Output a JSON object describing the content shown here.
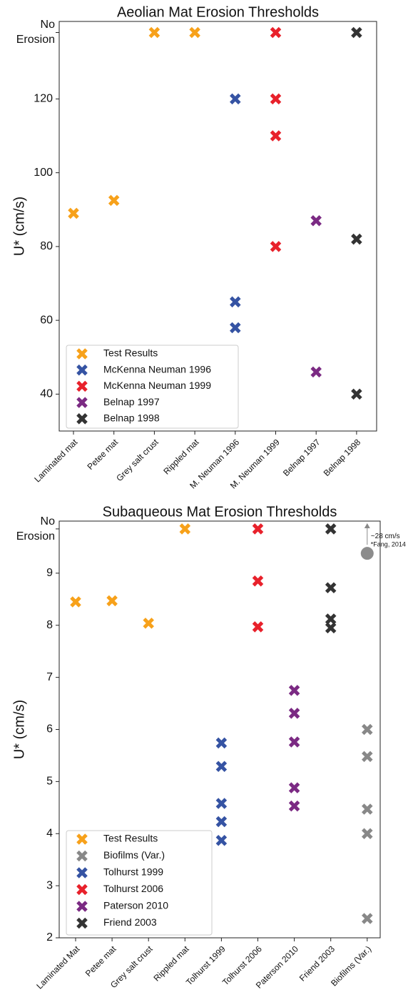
{
  "chart_data": [
    {
      "type": "scatter",
      "title": "Aeolian Mat Erosion Thresholds",
      "y_label": "U* (cm/s)",
      "categories": [
        "Laminated mat",
        "Petee mat",
        "Grey salt crust",
        "Rippled mat",
        "M. Neuman 1996",
        "M. Neuman 1999",
        "Belnap 1997",
        "Belnap 1998"
      ],
      "ylim": [
        30,
        141
      ],
      "yticks": [
        40,
        60,
        80,
        100,
        120,
        {
          "value": 138,
          "label": "No Erosion"
        }
      ],
      "grid": false,
      "legend": "lower left",
      "series": [
        {
          "name": "Test Results",
          "color": "#f7a11a",
          "x": [
            "Laminated mat",
            "Petee mat",
            "Grey salt crust",
            "Rippled mat"
          ],
          "values": [
            89,
            92.5,
            138,
            138
          ]
        },
        {
          "name": "McKenna Neuman 1996",
          "color": "#3553a3",
          "x": [
            "M. Neuman 1996",
            "M. Neuman 1996",
            "M. Neuman 1996"
          ],
          "values": [
            120,
            65,
            58
          ]
        },
        {
          "name": "McKenna Neuman 1999",
          "color": "#e8212b",
          "x": [
            "M. Neuman 1999",
            "M. Neuman 1999",
            "M. Neuman 1999",
            "M. Neuman 1999"
          ],
          "values": [
            138,
            120,
            110,
            80
          ]
        },
        {
          "name": "Belnap 1997",
          "color": "#7b2a83",
          "x": [
            "Belnap 1997",
            "Belnap 1997"
          ],
          "values": [
            87,
            46
          ]
        },
        {
          "name": "Belnap 1998",
          "color": "#333333",
          "x": [
            "Belnap 1998",
            "Belnap 1998",
            "Belnap 1998"
          ],
          "values": [
            138,
            82,
            40
          ]
        }
      ]
    },
    {
      "type": "scatter",
      "title": "Subaqueous Mat Erosion Thresholds",
      "y_label": "U* (cm/s)",
      "categories": [
        "Laminated Mat",
        "Petee mat",
        "Grey salt crust",
        "Rippled mat",
        "Tolhurst 1999",
        "Tolhurst 2006",
        "Paterson 2010",
        "Friend 2003",
        "Biofilms (Var.)"
      ],
      "ylim": [
        2,
        10
      ],
      "yticks": [
        2,
        3,
        4,
        5,
        6,
        7,
        8,
        9,
        {
          "value": 9.85,
          "label": "No Erosion"
        }
      ],
      "grid": false,
      "legend": "lower left",
      "series": [
        {
          "name": "Test Results",
          "color": "#f7a11a",
          "x": [
            "Laminated Mat",
            "Petee mat",
            "Grey salt crust",
            "Rippled mat"
          ],
          "values": [
            8.45,
            8.47,
            8.04,
            9.85
          ]
        },
        {
          "name": "Biofilms (Var.)",
          "color": "#888888",
          "x": [
            "Biofilms (Var.)",
            "Biofilms (Var.)",
            "Biofilms (Var.)",
            "Biofilms (Var.)",
            "Biofilms (Var.)"
          ],
          "values": [
            6.0,
            5.48,
            4.47,
            4.0,
            2.37
          ]
        },
        {
          "name": "Tolhurst 1999",
          "color": "#3553a3",
          "x": [
            "Tolhurst 1999",
            "Tolhurst 1999",
            "Tolhurst 1999",
            "Tolhurst 1999",
            "Tolhurst 1999"
          ],
          "values": [
            5.74,
            5.29,
            4.58,
            4.23,
            3.87
          ]
        },
        {
          "name": "Tolhurst 2006",
          "color": "#e8212b",
          "x": [
            "Tolhurst 2006",
            "Tolhurst 2006",
            "Tolhurst 2006"
          ],
          "values": [
            9.85,
            8.85,
            7.97
          ]
        },
        {
          "name": "Paterson 2010",
          "color": "#7b2a83",
          "x": [
            "Paterson 2010",
            "Paterson 2010",
            "Paterson 2010",
            "Paterson 2010",
            "Paterson 2010"
          ],
          "values": [
            6.75,
            6.31,
            5.76,
            4.88,
            4.53
          ]
        },
        {
          "name": "Friend 2003",
          "color": "#333333",
          "x": [
            "Friend 2003",
            "Friend 2003",
            "Friend 2003",
            "Friend 2003"
          ],
          "values": [
            9.85,
            8.72,
            8.12,
            7.95
          ]
        }
      ],
      "annotation": {
        "text": "~28 cm/s",
        "note": "*Fang, 2014",
        "x": "Biofilms (Var.)",
        "value": 9.38,
        "color": "#8c8c8c"
      }
    }
  ]
}
